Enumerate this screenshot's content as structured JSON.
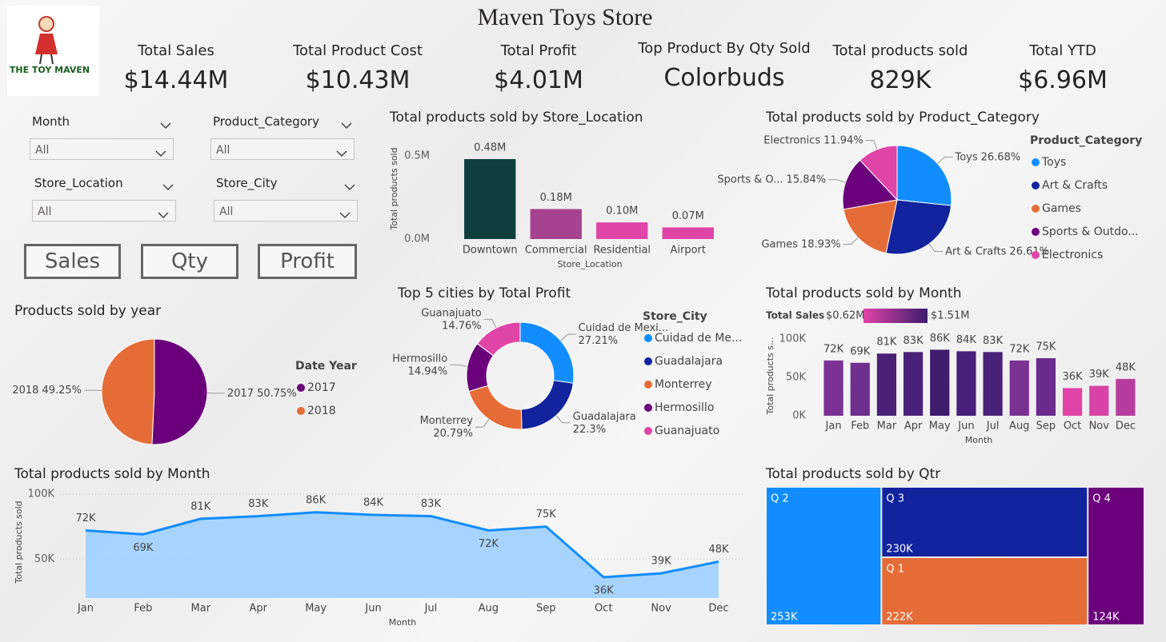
{
  "header": {
    "title": "Maven Toys Store",
    "logo_text": "THE TOY MAVEN"
  },
  "kpis": [
    {
      "label": "Total Sales",
      "value": "$14.44M"
    },
    {
      "label": "Total Product Cost",
      "value": "$10.43M"
    },
    {
      "label": "Total Profit",
      "value": "$4.01M"
    },
    {
      "label": "Top Product By Qty Sold",
      "value": "Colorbuds"
    },
    {
      "label": "Total products sold",
      "value": "829K"
    },
    {
      "label": "Total YTD",
      "value": "$6.96M"
    }
  ],
  "slicers": [
    {
      "label": "Month",
      "selection": "All"
    },
    {
      "label": "Product_Category",
      "selection": "All"
    },
    {
      "label": "Store_Location",
      "selection": "All"
    },
    {
      "label": "Store_City",
      "selection": "All"
    }
  ],
  "buttons": [
    "Sales",
    "Qty",
    "Profit"
  ],
  "chart_data": [
    {
      "type": "bar",
      "title": "Total products sold by Store_Location",
      "x_label": "Store_Location",
      "y_label": "Total products sold",
      "categories": [
        "Downtown",
        "Commercial",
        "Residential",
        "Airport"
      ],
      "values": [
        480000,
        180000,
        100000,
        70000
      ],
      "value_labels": [
        "0.48M",
        "0.18M",
        "0.10M",
        "0.07M"
      ],
      "colors": [
        "#0e3f3c",
        "#a6428f",
        "#e044a7",
        "#e044a7"
      ],
      "ylim": [
        0,
        600000
      ],
      "yticks": [
        {
          "value": 0,
          "label": "0.0M"
        },
        {
          "value": 500000,
          "label": "0.5M"
        }
      ]
    },
    {
      "type": "pie",
      "title": "Total products sold by Product_Category",
      "legend_title": "Product_Category",
      "categories": [
        "Toys",
        "Art & Crafts",
        "Games",
        "Sports & Outdo...",
        "Electronics"
      ],
      "data_labels": [
        "Toys",
        "Art & Crafts",
        "Games",
        "Sports & O...",
        "Electronics"
      ],
      "values": [
        26.68,
        26.61,
        18.93,
        15.84,
        11.94
      ],
      "value_labels": [
        "26.68%",
        "26.61%",
        "18.93%",
        "15.84%",
        "11.94%"
      ],
      "colors": [
        "#118dff",
        "#12239e",
        "#e66c37",
        "#6b007b",
        "#e044a7"
      ]
    },
    {
      "type": "bar",
      "title": "Total products sold by Month",
      "x_label": "Month",
      "y_label": "Total products s...",
      "categories": [
        "Jan",
        "Feb",
        "Mar",
        "Apr",
        "May",
        "Jun",
        "Jul",
        "Aug",
        "Sep",
        "Oct",
        "Nov",
        "Dec"
      ],
      "values": [
        72000,
        69000,
        81000,
        83000,
        86000,
        84000,
        83000,
        72000,
        75000,
        36000,
        39000,
        48000
      ],
      "value_labels": [
        "72K",
        "69K",
        "81K",
        "83K",
        "86K",
        "84K",
        "83K",
        "72K",
        "75K",
        "36K",
        "39K",
        "48K"
      ],
      "colors": [
        "#7b3294",
        "#6e2f8e",
        "#4b2177",
        "#4a2178",
        "#3e1c6e",
        "#46207a",
        "#4a2178",
        "#7a3293",
        "#6a2c8c",
        "#e044a7",
        "#d843a5",
        "#b63d9e"
      ],
      "color_scale": {
        "title": "Total Sales",
        "min": {
          "value": 620000,
          "label": "$0.62M"
        },
        "max": {
          "value": 1510000,
          "label": "$1.51M"
        },
        "colors": [
          "#e044a7",
          "#3d1c6e"
        ]
      },
      "ylim": [
        0,
        100000
      ],
      "yticks": [
        {
          "value": 0,
          "label": "0K"
        },
        {
          "value": 50000,
          "label": "50K"
        },
        {
          "value": 100000,
          "label": "100K"
        }
      ]
    },
    {
      "type": "pie",
      "title": "Products sold by year",
      "legend_title": "Date Year",
      "categories": [
        "2017",
        "2018"
      ],
      "values": [
        50.75,
        49.25
      ],
      "value_labels": [
        "50.75%",
        "49.25%"
      ],
      "colors": [
        "#6b007b",
        "#e66c37"
      ]
    },
    {
      "type": "donut",
      "title": "Top 5 cities by Total Profit",
      "legend_title": "Store_City",
      "categories": [
        "Cuidad de Me...",
        "Guadalajara",
        "Monterrey",
        "Hermosillo",
        "Guanajuato"
      ],
      "data_labels": [
        "Cuidad de Mexi...",
        "Guadalajara",
        "Monterrey",
        "Hermosillo",
        "Guanajuato"
      ],
      "values": [
        27.21,
        22.3,
        20.79,
        14.94,
        14.76
      ],
      "value_labels": [
        "27.21%",
        "22.3%",
        "20.79%",
        "14.94%",
        "14.76%"
      ],
      "colors": [
        "#118dff",
        "#12239e",
        "#e66c37",
        "#6b007b",
        "#e044a7"
      ]
    },
    {
      "type": "area",
      "title": "Total products sold by Month",
      "x_label": "Month",
      "y_label": "Total products sold",
      "categories": [
        "Jan",
        "Feb",
        "Mar",
        "Apr",
        "May",
        "Jun",
        "Jul",
        "Aug",
        "Sep",
        "Oct",
        "Nov",
        "Dec"
      ],
      "values": [
        72000,
        69000,
        81000,
        83000,
        86000,
        84000,
        83000,
        72000,
        75000,
        36000,
        39000,
        48000
      ],
      "value_labels": [
        "72K",
        "69K",
        "81K",
        "83K",
        "86K",
        "84K",
        "83K",
        "72K",
        "75K",
        "36K",
        "39K",
        "48K"
      ],
      "color": "#118dff",
      "grid": true,
      "ylim": [
        20000,
        100000
      ],
      "yticks": [
        {
          "value": 50000,
          "label": "50K"
        },
        {
          "value": 100000,
          "label": "100K"
        }
      ]
    },
    {
      "type": "treemap",
      "title": "Total products sold by Qtr",
      "categories": [
        "Q 2",
        "Q 3",
        "Q 1",
        "Q 4"
      ],
      "values": [
        253000,
        230000,
        222000,
        124000
      ],
      "value_labels": [
        "253K",
        "230K",
        "222K",
        "124K"
      ],
      "colors": [
        "#118dff",
        "#12239e",
        "#e66c37",
        "#6b007b"
      ]
    }
  ]
}
